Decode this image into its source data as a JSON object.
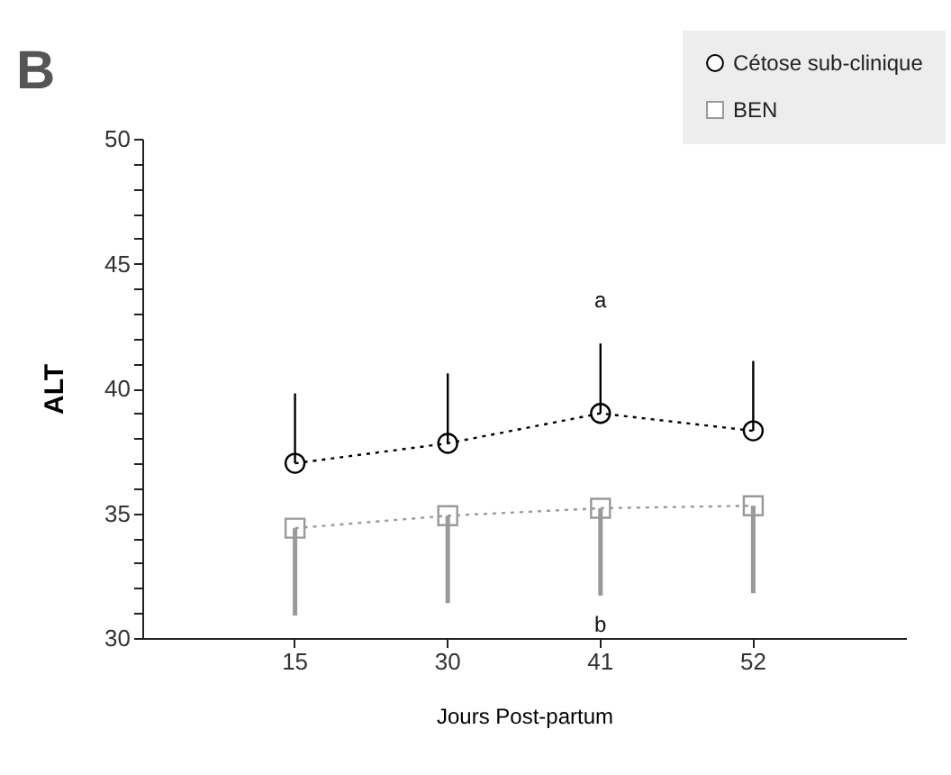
{
  "chart_data": {
    "type": "line",
    "title": "B",
    "xlabel": "Jours Post-partum",
    "ylabel": "ALT",
    "categories": [
      "15",
      "30",
      "41",
      "52"
    ],
    "series": [
      {
        "name": "Cétose sub-clinique",
        "color": "#000000",
        "marker": "circle",
        "values": [
          37.0,
          37.8,
          39.0,
          38.3
        ],
        "errors": [
          [
            37.0,
            39.8
          ],
          [
            37.8,
            40.6
          ],
          [
            39.0,
            41.8
          ],
          [
            38.3,
            41.1
          ]
        ]
      },
      {
        "name": "BEN",
        "color": "#999999",
        "marker": "square",
        "values": [
          34.4,
          34.9,
          35.2,
          35.3
        ],
        "errors": [
          [
            30.9,
            34.4
          ],
          [
            31.4,
            34.9
          ],
          [
            31.7,
            35.2
          ],
          [
            31.8,
            35.3
          ]
        ]
      }
    ],
    "ylim": [
      30,
      50
    ],
    "yticks": [
      30,
      {
        "value": 31,
        "label": null
      },
      {
        "value": 32,
        "label": null
      },
      {
        "value": 33,
        "label": null
      },
      {
        "value": 34,
        "label": null
      },
      35,
      {
        "value": 36,
        "label": null
      },
      {
        "value": 37,
        "label": null
      },
      {
        "value": 38,
        "label": null
      },
      {
        "value": 39,
        "label": null
      },
      40,
      {
        "value": 41,
        "label": null
      },
      {
        "value": 42,
        "label": null
      },
      {
        "value": 43,
        "label": null
      },
      {
        "value": 44,
        "label": null
      },
      45,
      {
        "value": 46,
        "label": null
      },
      {
        "value": 47,
        "label": null
      },
      {
        "value": 48,
        "label": null
      },
      {
        "value": 49,
        "label": null
      },
      50
    ],
    "annotations": [
      {
        "text": "a",
        "x": "41",
        "y": 41.8
      },
      {
        "text": "b",
        "x": "41",
        "y": 31.7
      }
    ],
    "grid": false,
    "legend": "top right",
    "line_style": "dotted"
  }
}
